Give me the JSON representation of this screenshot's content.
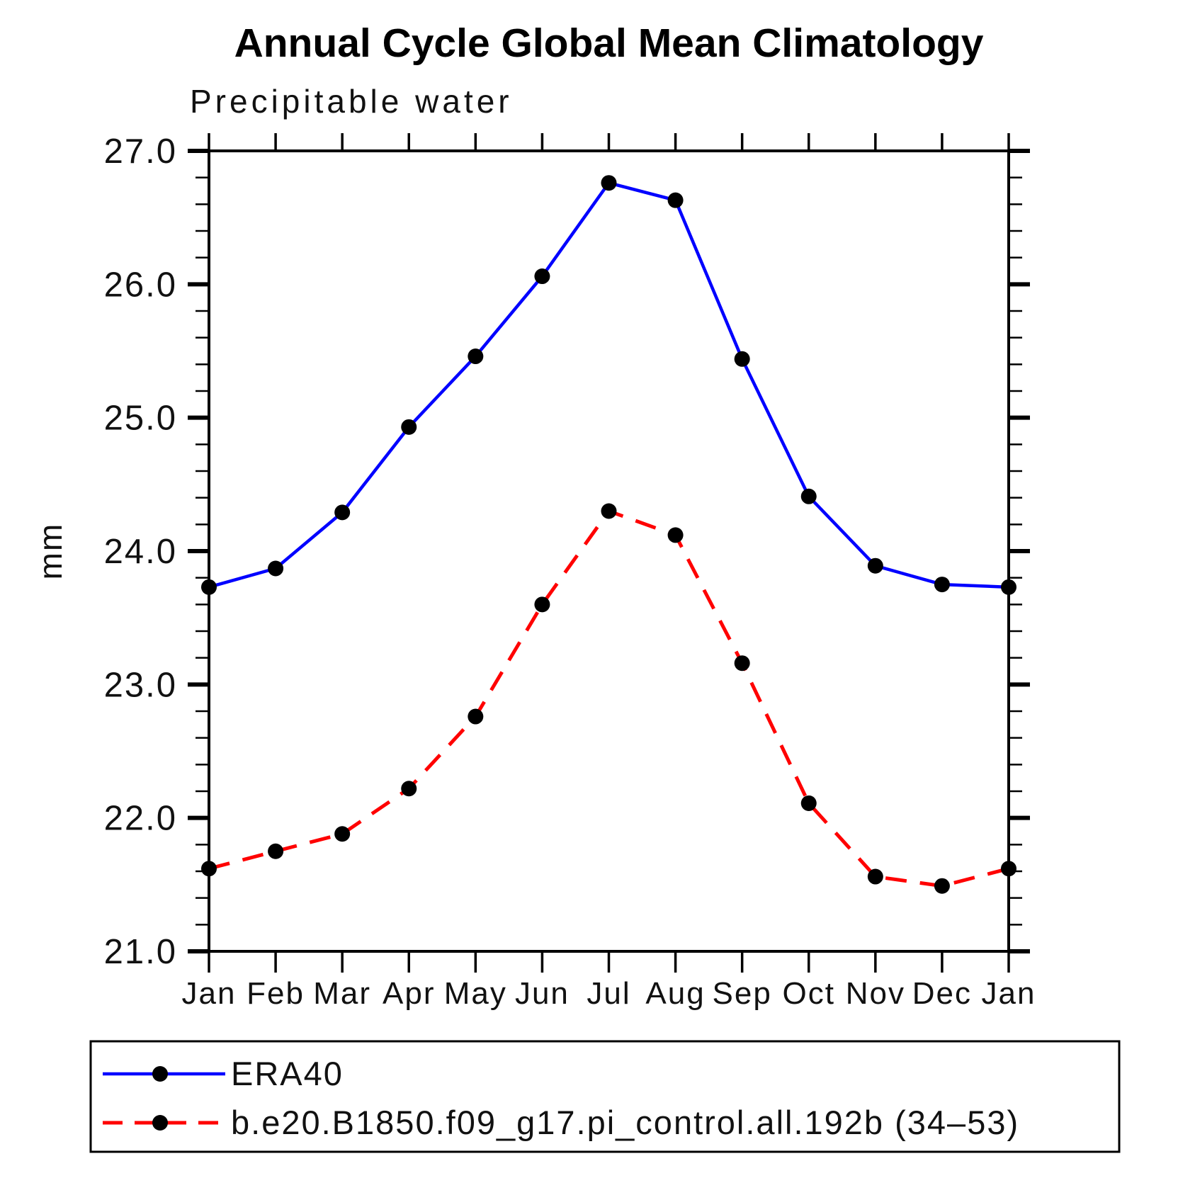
{
  "chart_data": {
    "type": "line",
    "title": "Annual Cycle Global Mean Climatology",
    "subtitle": "Precipitable water",
    "ylabel": "mm",
    "categories": [
      "Jan",
      "Feb",
      "Mar",
      "Apr",
      "May",
      "Jun",
      "Jul",
      "Aug",
      "Sep",
      "Oct",
      "Nov",
      "Dec",
      "Jan"
    ],
    "ylim": [
      21.0,
      27.0
    ],
    "ytick_interval": 1.0,
    "ytick_minor_interval": 0.2,
    "ytick_labels": [
      "21.0",
      "22.0",
      "23.0",
      "24.0",
      "25.0",
      "26.0",
      "27.0"
    ],
    "grid": false,
    "legend_position": "bottom-left-box",
    "axis_color": "#000000",
    "marker_color": "#000000",
    "series": [
      {
        "name": "ERA40",
        "color": "#0000ff",
        "style": "solid",
        "marker": "circle",
        "values": [
          23.73,
          23.87,
          24.29,
          24.93,
          25.46,
          26.06,
          26.76,
          26.63,
          25.44,
          24.41,
          23.89,
          23.75,
          23.73
        ]
      },
      {
        "name": "b.e20.B1850.f09_g17.pi_control.all.192b (34–53)",
        "color": "#ff0000",
        "style": "dashed",
        "marker": "circle",
        "values": [
          21.62,
          21.75,
          21.88,
          22.22,
          22.76,
          23.6,
          24.3,
          24.12,
          23.16,
          22.11,
          21.56,
          21.49,
          21.62
        ]
      }
    ]
  }
}
